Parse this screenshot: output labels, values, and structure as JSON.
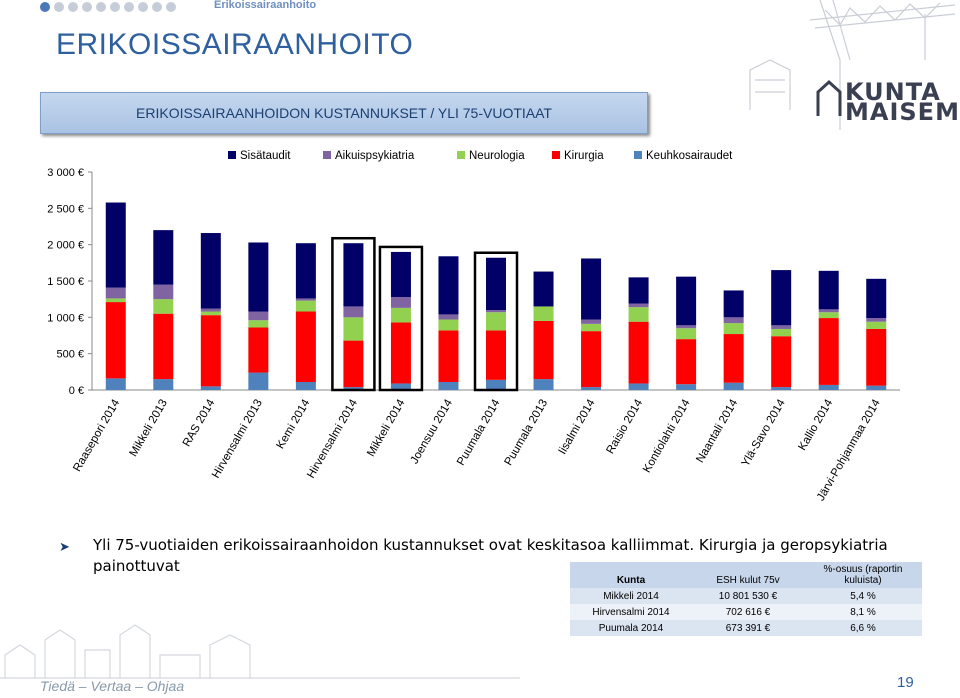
{
  "header": {
    "breadcrumb": "Erikoissairaanhoito",
    "title": "ERIKOISSAIRAANHOITO",
    "banner": "ERIKOISSAIRAANHOIDON KUSTANNUKSET / YLI 75-VUOTIAAT",
    "logo_line1": "KUNTA",
    "logo_line2": "MAISEMA"
  },
  "chart_data": {
    "type": "bar",
    "stacked": true,
    "categories": [
      "Raasepori 2014",
      "Mikkeli 2013",
      "RAS 2014",
      "Hirvensalmi 2013",
      "Kemi 2014",
      "Hirvensalmi 2014",
      "Mikkeli 2014",
      "Joensuu 2014",
      "Puumala 2014",
      "Puumala 2013",
      "Iisalmi 2014",
      "Raisio 2014",
      "Kontiolahti 2014",
      "Naantali 2014",
      "Ylä-Savo 2014",
      "Kallio 2014",
      "Järvi-Pohjanmaa 2014"
    ],
    "series": [
      {
        "name": "Keuhkosairaudet",
        "color": "#4f81bd",
        "values": [
          160,
          150,
          50,
          240,
          110,
          40,
          90,
          110,
          140,
          150,
          40,
          90,
          80,
          100,
          40,
          70,
          60
        ]
      },
      {
        "name": "Kirurgia",
        "color": "#ff0000",
        "values": [
          1050,
          900,
          980,
          620,
          970,
          640,
          840,
          710,
          680,
          800,
          770,
          850,
          620,
          670,
          700,
          920,
          780
        ]
      },
      {
        "name": "Neurologia",
        "color": "#92d050",
        "values": [
          50,
          200,
          50,
          100,
          150,
          320,
          200,
          150,
          250,
          200,
          100,
          200,
          150,
          150,
          100,
          80,
          100
        ]
      },
      {
        "name": "Aikuispsykiatria",
        "color": "#8064a2",
        "values": [
          150,
          200,
          40,
          120,
          30,
          150,
          150,
          70,
          30,
          0,
          60,
          50,
          40,
          80,
          50,
          40,
          50
        ]
      },
      {
        "name": "Sisätaudit",
        "color": "#000066",
        "values": [
          1170,
          750,
          1040,
          950,
          760,
          870,
          620,
          800,
          720,
          480,
          840,
          360,
          670,
          370,
          760,
          530,
          540
        ]
      }
    ],
    "y_tick_labels": [
      "0 €",
      "500 €",
      "1 000 €",
      "1 500 €",
      "2 000 €",
      "2 500 €",
      "3 000 €"
    ],
    "ylim": [
      0,
      3000
    ],
    "legend_order": [
      "Sisätaudit",
      "Aikuispsykiatria",
      "Neurologia",
      "Kirurgia",
      "Keuhkosairaudet"
    ],
    "legend_position": "top",
    "grid": false,
    "highlighted_categories": [
      "Hirvensalmi 2014",
      "Mikkeli 2014",
      "Puumala 2014"
    ]
  },
  "bullet": {
    "text": "Yli 75-vuotiaiden erikoissairaanhoidon kustannukset ovat keskitasoa kalliimmat. Kirurgia ja geropsykiatria painottuvat"
  },
  "table": {
    "headers": [
      "Kunta",
      "ESH kulut 75v",
      "%-osuus (raportin kuluista)"
    ],
    "rows": [
      [
        "Mikkeli 2014",
        "10 801 530 €",
        "5,4 %"
      ],
      [
        "Hirvensalmi 2014",
        "702 616 €",
        "8,1 %"
      ],
      [
        "Puumala 2014",
        "673 391 €",
        "6,6 %"
      ]
    ]
  },
  "footer": {
    "slogan": "Tiedä – Vertaa – Ohjaa",
    "page_number": "19"
  }
}
